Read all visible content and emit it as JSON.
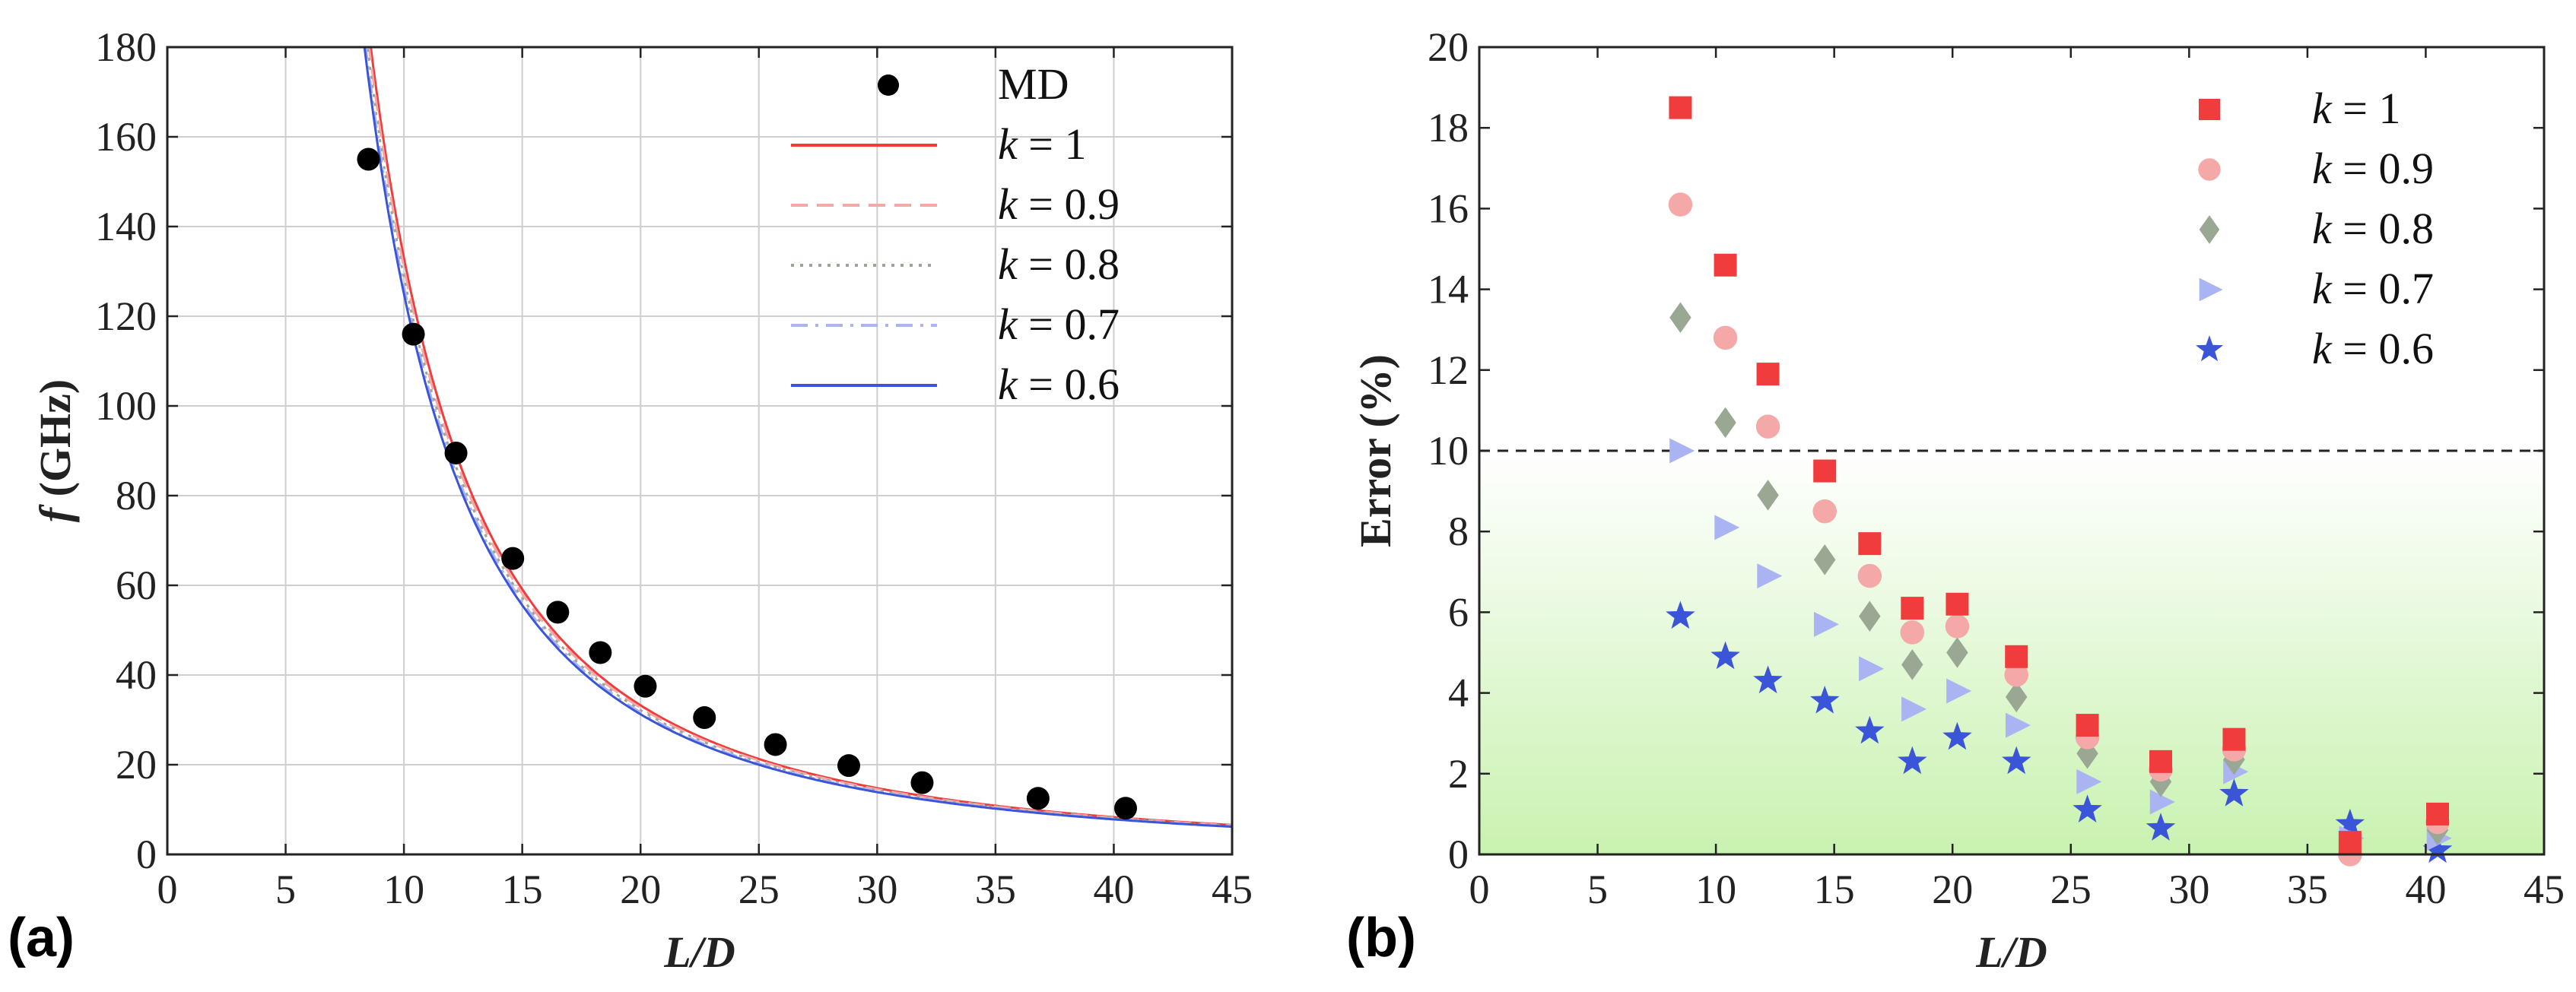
{
  "colors": {
    "k1": "#f03c3c",
    "k09": "#f5a8a8",
    "k08": "#9aa893",
    "k07": "#aab4f2",
    "k06": "#3b55d9",
    "md": "#000000",
    "grid": "#cfcfcf",
    "shade_top": "#ffffff",
    "shade_bottom": "#c9f2b0"
  },
  "chart_data": [
    {
      "panel": "(a)",
      "type": "line",
      "title": "",
      "xlabel": "L/D",
      "ylabel_italic": "f",
      "ylabel_rest": " (GHz)",
      "xlim": [
        0,
        45
      ],
      "ylim": [
        0,
        180
      ],
      "xticks": [
        "0",
        "5",
        "10",
        "15",
        "20",
        "25",
        "30",
        "35",
        "40",
        "45"
      ],
      "yticks": [
        "0",
        "20",
        "40",
        "60",
        "80",
        "100",
        "120",
        "140",
        "160",
        "180"
      ],
      "grid": true,
      "legend_position": "top-right",
      "legend": [
        {
          "prefix": "",
          "label": "MD",
          "style": "marker"
        },
        {
          "prefix": "k",
          "label": " = 1",
          "style": "solid",
          "color_key": "k1"
        },
        {
          "prefix": "k",
          "label": " = 0.9",
          "style": "dashed",
          "color_key": "k09"
        },
        {
          "prefix": "k",
          "label": " = 0.8",
          "style": "dotted",
          "color_key": "k08"
        },
        {
          "prefix": "k",
          "label": " = 0.7",
          "style": "dashdot",
          "color_key": "k07"
        },
        {
          "prefix": "k",
          "label": " = 0.6",
          "style": "solid",
          "color_key": "k06"
        }
      ],
      "md_points": {
        "x": [
          8.5,
          10.4,
          12.2,
          14.6,
          16.5,
          18.3,
          20.2,
          22.7,
          25.7,
          28.8,
          31.9,
          36.8,
          40.5
        ],
        "y": [
          155,
          116,
          89.5,
          66,
          54,
          45,
          37.5,
          30.5,
          24.5,
          19.8,
          16,
          12.5,
          10.3
        ]
      },
      "curves": [
        {
          "name": "k = 1",
          "color_key": "k1",
          "coef": 13300
        },
        {
          "name": "k = 0.9",
          "color_key": "k09",
          "coef": 13080
        },
        {
          "name": "k = 0.8",
          "color_key": "k08",
          "coef": 12870
        },
        {
          "name": "k = 0.7",
          "color_key": "k07",
          "coef": 12680
        },
        {
          "name": "k = 0.6",
          "color_key": "k06",
          "coef": 12500
        }
      ]
    },
    {
      "panel": "(b)",
      "type": "scatter",
      "title": "",
      "xlabel": "L/D",
      "ylabel": "Error (%)",
      "xlim": [
        0,
        45
      ],
      "ylim": [
        0,
        20
      ],
      "xticks": [
        "0",
        "5",
        "10",
        "15",
        "20",
        "25",
        "30",
        "35",
        "40",
        "45"
      ],
      "yticks": [
        "0",
        "2",
        "4",
        "6",
        "8",
        "10",
        "12",
        "14",
        "16",
        "18",
        "20"
      ],
      "threshold": 10,
      "legend_position": "top-right",
      "x": [
        8.5,
        10.4,
        12.2,
        14.6,
        16.5,
        18.3,
        20.2,
        22.7,
        25.7,
        28.8,
        31.9,
        36.8,
        40.5
      ],
      "series": [
        {
          "prefix": "k",
          "label": " = 1",
          "marker": "square",
          "color_key": "k1",
          "values": [
            18.5,
            14.6,
            11.9,
            9.5,
            7.7,
            6.1,
            6.2,
            4.9,
            3.2,
            2.3,
            2.85,
            0.3,
            1.0
          ]
        },
        {
          "prefix": "k",
          "label": " = 0.9",
          "marker": "circle",
          "color_key": "k09",
          "values": [
            16.1,
            12.8,
            10.6,
            8.5,
            6.9,
            5.5,
            5.65,
            4.45,
            2.9,
            2.1,
            2.6,
            0.0,
            0.8
          ]
        },
        {
          "prefix": "k",
          "label": " = 0.8",
          "marker": "diamond",
          "color_key": "k08",
          "values": [
            13.3,
            10.7,
            8.9,
            7.3,
            5.9,
            4.7,
            5.0,
            3.9,
            2.5,
            1.8,
            2.35,
            0.15,
            0.6
          ]
        },
        {
          "prefix": "k",
          "label": " = 0.7",
          "marker": "triangle",
          "color_key": "k07",
          "values": [
            10.0,
            8.1,
            6.9,
            5.7,
            4.6,
            3.6,
            4.05,
            3.2,
            1.8,
            1.3,
            2.05,
            0.4,
            0.4
          ]
        },
        {
          "prefix": "k",
          "label": " = 0.6",
          "marker": "star",
          "color_key": "k06",
          "values": [
            5.9,
            4.9,
            4.3,
            3.8,
            3.05,
            2.3,
            2.9,
            2.3,
            1.1,
            0.65,
            1.5,
            0.75,
            0.1
          ]
        }
      ]
    }
  ]
}
